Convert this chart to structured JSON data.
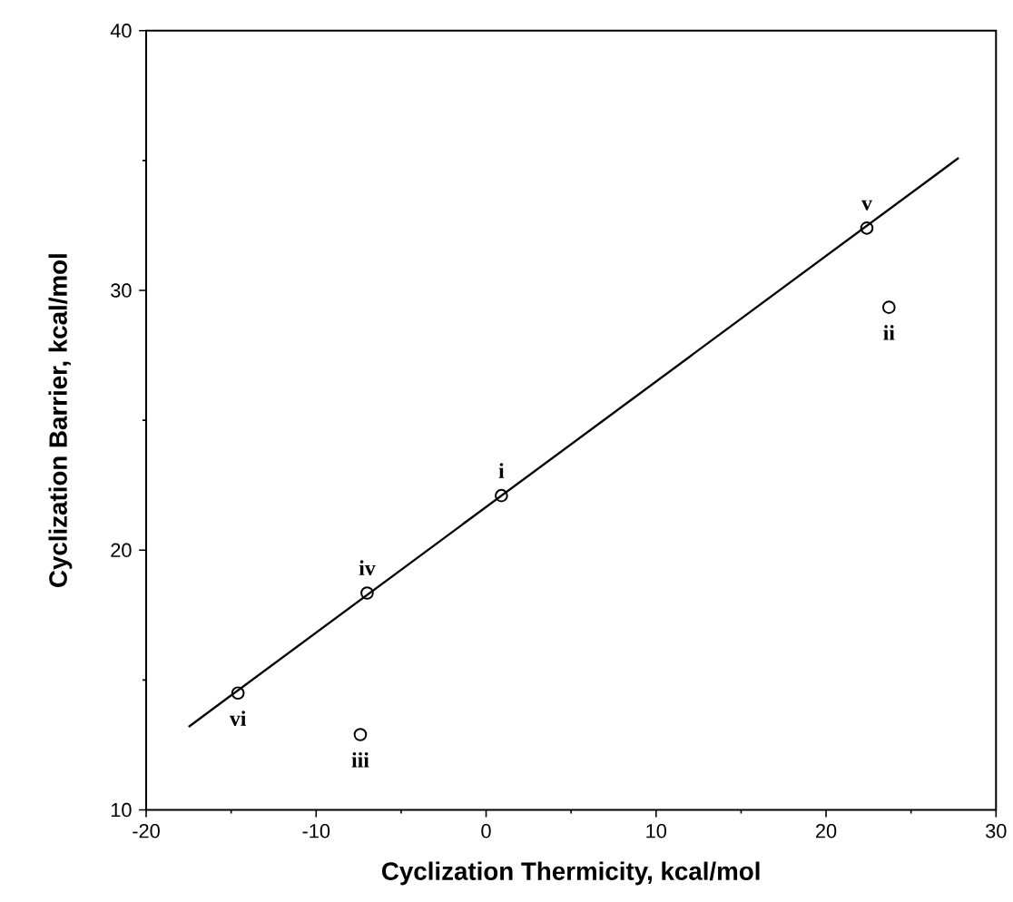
{
  "chart_data": {
    "type": "scatter",
    "xlabel": "Cyclization Thermicity, kcal/mol",
    "ylabel": "Cyclization Barrier, kcal/mol",
    "xlim": [
      -20,
      30
    ],
    "ylim": [
      10,
      40
    ],
    "xticks": [
      -20,
      -10,
      0,
      10,
      20,
      30
    ],
    "yticks": [
      10,
      20,
      30,
      40
    ],
    "series": [
      {
        "type": "line",
        "color": "#000000",
        "marker": "none",
        "line_style": "solid",
        "x": [
          -17.5,
          27.8
        ],
        "values": [
          13.2,
          35.1
        ]
      },
      {
        "color": "#000000",
        "marker": "circle",
        "x": [
          -14.6,
          -7.4,
          -7.0,
          0.9,
          22.4,
          23.7
        ],
        "values": [
          14.5,
          12.9,
          18.35,
          22.1,
          32.4,
          29.35
        ]
      }
    ],
    "annotations": [
      {
        "text": "vi",
        "x": -14.6,
        "y": 14.5
      },
      {
        "text": "iii",
        "x": -7.4,
        "y": 12.9
      },
      {
        "text": "iv",
        "x": -7.0,
        "y": 18.35
      },
      {
        "text": "i",
        "x": 0.9,
        "y": 22.1
      },
      {
        "text": "v",
        "x": 22.4,
        "y": 32.4
      },
      {
        "text": "ii",
        "x": 23.7,
        "y": 29.35
      }
    ]
  }
}
